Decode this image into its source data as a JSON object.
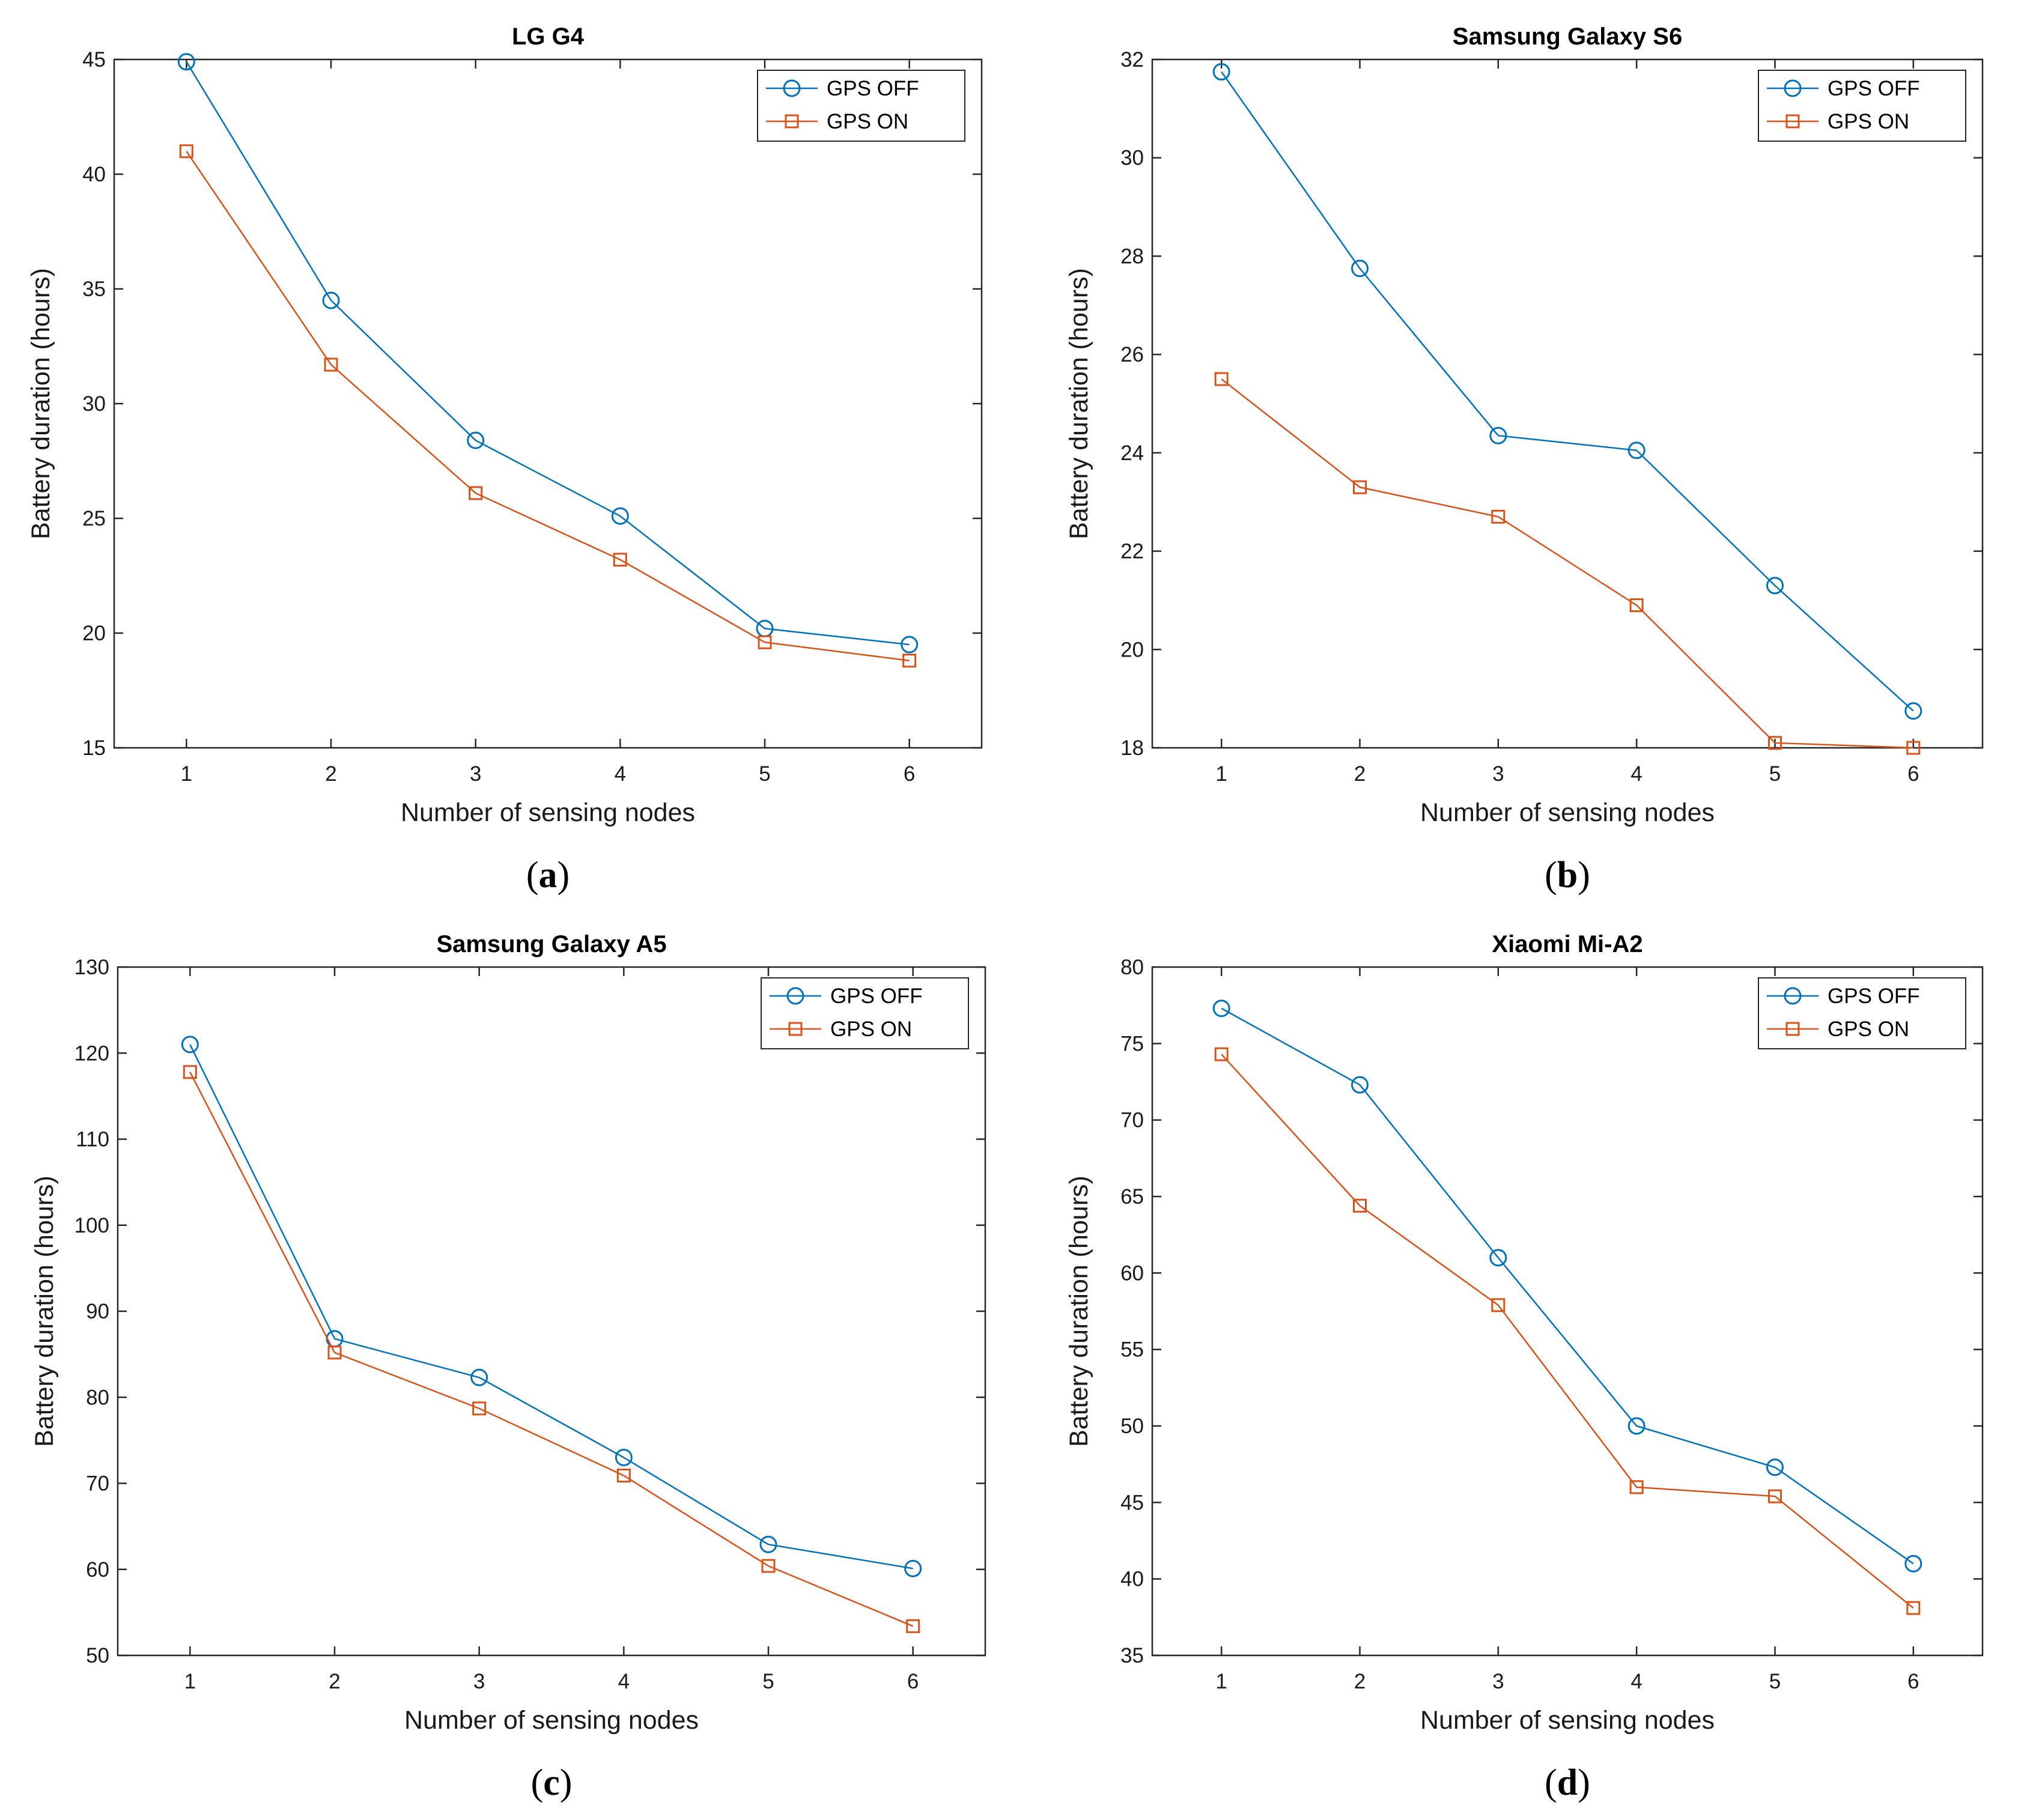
{
  "chart_data": [
    {
      "type": "line",
      "panel_label": "a",
      "title": "LG G4",
      "xlabel": "Number of sensing nodes",
      "ylabel": "Battery duration (hours)",
      "x": [
        1,
        2,
        3,
        4,
        5,
        6
      ],
      "xlim": [
        0.5,
        6.5
      ],
      "ylim": [
        15,
        45
      ],
      "yticks": [
        15,
        20,
        25,
        30,
        35,
        40,
        45
      ],
      "legend_position": "top-right",
      "series": [
        {
          "name": "GPS OFF",
          "color": "#0072BD",
          "marker": "circle",
          "values": [
            44.9,
            34.5,
            28.4,
            25.1,
            20.2,
            19.5
          ]
        },
        {
          "name": "GPS ON",
          "color": "#D95319",
          "marker": "square",
          "values": [
            41.0,
            31.7,
            26.1,
            23.2,
            19.6,
            18.8
          ]
        }
      ]
    },
    {
      "type": "line",
      "panel_label": "b",
      "title": "Samsung Galaxy S6",
      "xlabel": "Number of sensing nodes",
      "ylabel": "Battery duration (hours)",
      "x": [
        1,
        2,
        3,
        4,
        5,
        6
      ],
      "xlim": [
        0.5,
        6.5
      ],
      "ylim": [
        18,
        32
      ],
      "yticks": [
        18,
        20,
        22,
        24,
        26,
        28,
        30,
        32
      ],
      "legend_position": "top-right",
      "series": [
        {
          "name": "GPS OFF",
          "color": "#0072BD",
          "marker": "circle",
          "values": [
            31.75,
            27.75,
            24.35,
            24.05,
            21.3,
            18.75
          ]
        },
        {
          "name": "GPS ON",
          "color": "#D95319",
          "marker": "square",
          "values": [
            25.5,
            23.3,
            22.7,
            20.9,
            18.1,
            18.0
          ]
        }
      ]
    },
    {
      "type": "line",
      "panel_label": "c",
      "title": "Samsung Galaxy A5",
      "xlabel": "Number of sensing nodes",
      "ylabel": "Battery duration (hours)",
      "x": [
        1,
        2,
        3,
        4,
        5,
        6
      ],
      "xlim": [
        0.5,
        6.5
      ],
      "ylim": [
        50,
        130
      ],
      "yticks": [
        50,
        60,
        70,
        80,
        90,
        100,
        110,
        120,
        130
      ],
      "legend_position": "top-right",
      "series": [
        {
          "name": "GPS OFF",
          "color": "#0072BD",
          "marker": "circle",
          "values": [
            121.0,
            86.8,
            82.3,
            73.0,
            62.9,
            60.1
          ]
        },
        {
          "name": "GPS ON",
          "color": "#D95319",
          "marker": "square",
          "values": [
            117.8,
            85.2,
            78.7,
            70.9,
            60.4,
            53.4
          ]
        }
      ]
    },
    {
      "type": "line",
      "panel_label": "d",
      "title": "Xiaomi Mi-A2",
      "xlabel": "Number of sensing nodes",
      "ylabel": "Battery duration (hours)",
      "x": [
        1,
        2,
        3,
        4,
        5,
        6
      ],
      "xlim": [
        0.5,
        6.5
      ],
      "ylim": [
        35,
        80
      ],
      "yticks": [
        35,
        40,
        45,
        50,
        55,
        60,
        65,
        70,
        75,
        80
      ],
      "legend_position": "top-right",
      "series": [
        {
          "name": "GPS OFF",
          "color": "#0072BD",
          "marker": "circle",
          "values": [
            77.3,
            72.3,
            61.0,
            50.0,
            47.3,
            41.0
          ]
        },
        {
          "name": "GPS ON",
          "color": "#D95319",
          "marker": "square",
          "values": [
            74.3,
            64.4,
            57.9,
            46.0,
            45.4,
            38.1
          ]
        }
      ]
    }
  ]
}
